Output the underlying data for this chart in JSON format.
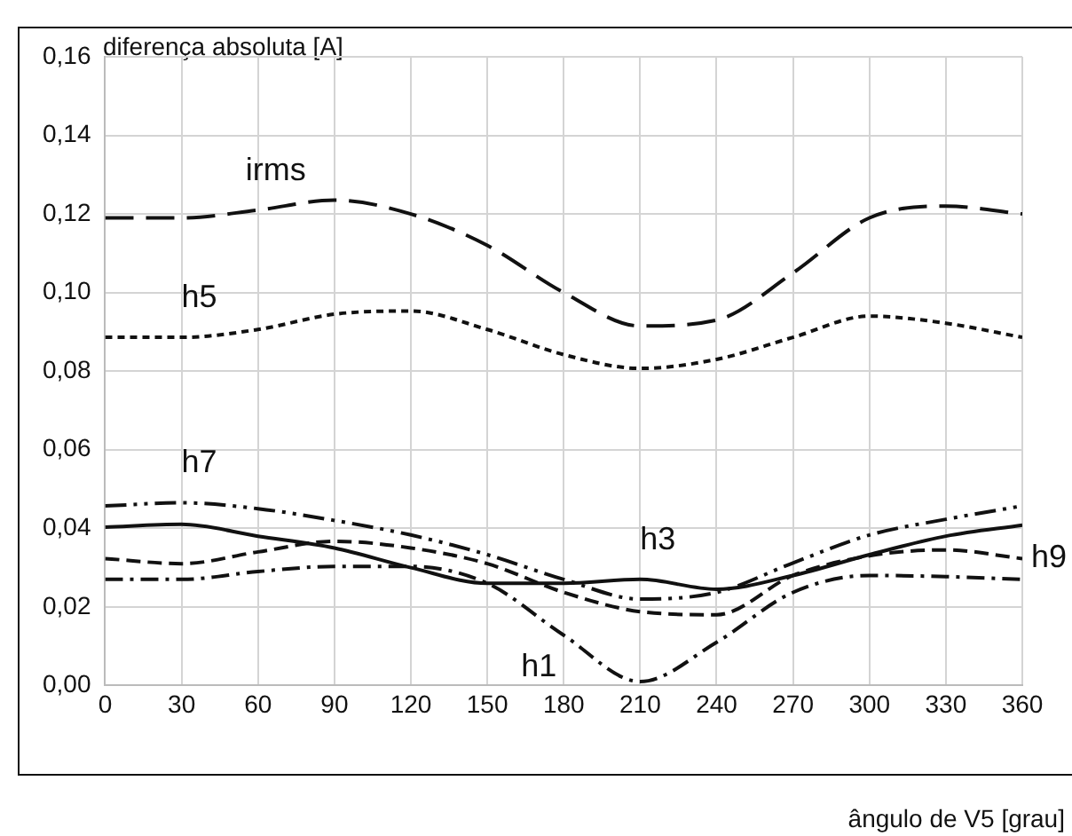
{
  "chart_data": {
    "type": "line",
    "ylabel": "diferença absoluta [A]",
    "xlabel": "ângulo de V5 [grau]",
    "x": [
      0,
      30,
      60,
      90,
      120,
      150,
      180,
      210,
      240,
      270,
      300,
      330,
      360
    ],
    "xlim": [
      0,
      360
    ],
    "xticks": [
      0,
      30,
      60,
      90,
      120,
      150,
      180,
      210,
      240,
      270,
      300,
      330,
      360
    ],
    "ylim": [
      0,
      0.16
    ],
    "yticks": [
      {
        "value": 0,
        "label": "0,00"
      },
      {
        "value": 0.02,
        "label": "0,02"
      },
      {
        "value": 0.04,
        "label": "0,04"
      },
      {
        "value": 0.06,
        "label": "0,06"
      },
      {
        "value": 0.08,
        "label": "0,08"
      },
      {
        "value": 0.1,
        "label": "0,10"
      },
      {
        "value": 0.12,
        "label": "0,12"
      },
      {
        "value": 0.14,
        "label": "0,14"
      },
      {
        "value": 0.16,
        "label": "0,16"
      }
    ],
    "grid": true,
    "legend": false,
    "marker": "none",
    "series": [
      {
        "color": "#111111",
        "line_style": "longdash",
        "values": [
          0.119,
          0.119,
          0.121,
          0.1235,
          0.12,
          0.112,
          0.1,
          0.0915,
          0.093,
          0.105,
          0.119,
          0.122,
          0.12
        ]
      },
      {
        "color": "#111111",
        "line_style": "dotted",
        "values": [
          0.0886,
          0.0886,
          0.0906,
          0.0945,
          0.0953,
          0.0906,
          0.0842,
          0.0807,
          0.083,
          0.0886,
          0.094,
          0.0922,
          0.0886
        ]
      },
      {
        "color": "#111111",
        "line_style": "dashdotdot",
        "values": [
          0.0457,
          0.0465,
          0.045,
          0.042,
          0.0383,
          0.0333,
          0.027,
          0.022,
          0.0237,
          0.0312,
          0.0383,
          0.0423,
          0.0457
        ]
      },
      {
        "color": "#111111",
        "line_style": "solid",
        "values": [
          0.0403,
          0.041,
          0.038,
          0.035,
          0.03,
          0.026,
          0.026,
          0.027,
          0.0245,
          0.028,
          0.0333,
          0.038,
          0.0408
        ]
      },
      {
        "name": "h9",
        "color": "#111111",
        "line_style": "dashed",
        "values": [
          0.0323,
          0.031,
          0.034,
          0.0367,
          0.035,
          0.031,
          0.0237,
          0.0188,
          0.018,
          0.028,
          0.033,
          0.0345,
          0.0323
        ]
      },
      {
        "color": "#111111",
        "line_style": "dashdot",
        "values": [
          0.027,
          0.027,
          0.029,
          0.0303,
          0.0303,
          0.026,
          0.0128,
          0.001,
          0.011,
          0.0237,
          0.028,
          0.0277,
          0.027
        ]
      }
    ],
    "annotations": [
      {
        "text": "irms",
        "x": 60,
        "y": 0.121
      },
      {
        "text": "h5",
        "x": 30,
        "y": 0.0886
      },
      {
        "text": "h7",
        "x": 30,
        "y": 0.0465
      },
      {
        "text": "h3",
        "x": 210,
        "y": 0.027
      },
      {
        "text": "h1",
        "x": 180,
        "y": 0.0128
      }
    ]
  }
}
